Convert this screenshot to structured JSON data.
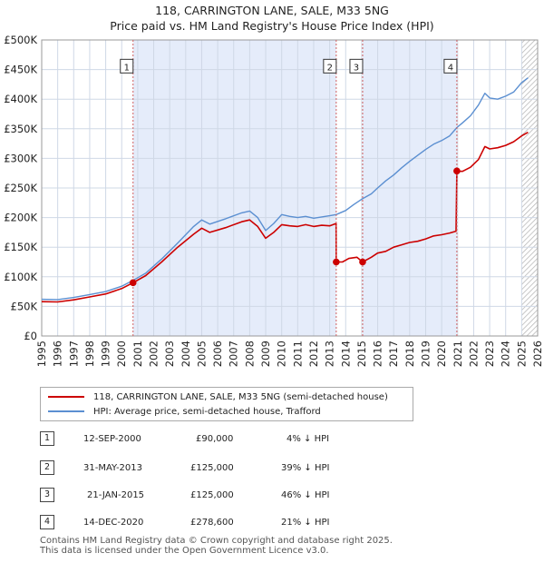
{
  "title_line1": "118, CARRINGTON LANE, SALE, M33 5NG",
  "title_line2": "Price paid vs. HM Land Registry's House Price Index (HPI)",
  "chart_data": {
    "type": "line",
    "xlim": [
      1995,
      2026
    ],
    "ylim": [
      0,
      500000
    ],
    "x_ticks": [
      1995,
      1996,
      1997,
      1998,
      1999,
      2000,
      2001,
      2002,
      2003,
      2004,
      2005,
      2006,
      2007,
      2008,
      2009,
      2010,
      2011,
      2012,
      2013,
      2014,
      2015,
      2016,
      2017,
      2018,
      2019,
      2020,
      2021,
      2022,
      2023,
      2024,
      2025,
      2026
    ],
    "y_ticks": [
      {
        "value": 0,
        "label": "£0"
      },
      {
        "value": 50000,
        "label": "£50K"
      },
      {
        "value": 100000,
        "label": "£100K"
      },
      {
        "value": 150000,
        "label": "£150K"
      },
      {
        "value": 200000,
        "label": "£200K"
      },
      {
        "value": 250000,
        "label": "£250K"
      },
      {
        "value": 300000,
        "label": "£300K"
      },
      {
        "value": 350000,
        "label": "£350K"
      },
      {
        "value": 400000,
        "label": "£400K"
      },
      {
        "value": 450000,
        "label": "£450K"
      },
      {
        "value": 500000,
        "label": "£500K"
      }
    ],
    "colors": {
      "price": "#cc0000",
      "hpi": "#5b8fd1",
      "shade": "#e5ecfa",
      "grid": "#cfd8e6",
      "marker": "#cc0000"
    },
    "series": [
      {
        "name": "118, CARRINGTON LANE, SALE, M33 5NG (semi-detached house)",
        "key": "price",
        "points": [
          [
            1995.0,
            58000
          ],
          [
            1996.0,
            57500
          ],
          [
            1997.0,
            61000
          ],
          [
            1998.0,
            66000
          ],
          [
            1999.0,
            71000
          ],
          [
            2000.0,
            80000
          ],
          [
            2000.71,
            90000
          ],
          [
            2001.5,
            102000
          ],
          [
            2002.5,
            125000
          ],
          [
            2003.5,
            150000
          ],
          [
            2004.5,
            172000
          ],
          [
            2005.0,
            182000
          ],
          [
            2005.5,
            175000
          ],
          [
            2006.5,
            183000
          ],
          [
            2007.5,
            193000
          ],
          [
            2008.0,
            196000
          ],
          [
            2008.5,
            185000
          ],
          [
            2009.0,
            165000
          ],
          [
            2009.5,
            175000
          ],
          [
            2010.0,
            188000
          ],
          [
            2010.5,
            186000
          ],
          [
            2011.0,
            185000
          ],
          [
            2011.5,
            188000
          ],
          [
            2012.0,
            185000
          ],
          [
            2012.5,
            187000
          ],
          [
            2013.0,
            186000
          ],
          [
            2013.4,
            190000
          ],
          [
            2013.41,
            125000
          ],
          [
            2013.8,
            125000
          ],
          [
            2014.2,
            131000
          ],
          [
            2014.7,
            133000
          ],
          [
            2015.06,
            125000
          ],
          [
            2015.6,
            133000
          ],
          [
            2016.0,
            140000
          ],
          [
            2016.5,
            143000
          ],
          [
            2017.0,
            150000
          ],
          [
            2017.5,
            154000
          ],
          [
            2018.0,
            158000
          ],
          [
            2018.5,
            160000
          ],
          [
            2019.0,
            164000
          ],
          [
            2019.5,
            169000
          ],
          [
            2020.0,
            171000
          ],
          [
            2020.5,
            174000
          ],
          [
            2020.9,
            177000
          ],
          [
            2020.95,
            278600
          ],
          [
            2021.3,
            278000
          ],
          [
            2021.8,
            285000
          ],
          [
            2022.3,
            298000
          ],
          [
            2022.7,
            320000
          ],
          [
            2023.0,
            316000
          ],
          [
            2023.5,
            318000
          ],
          [
            2024.0,
            322000
          ],
          [
            2024.5,
            328000
          ],
          [
            2025.0,
            338000
          ],
          [
            2025.4,
            344000
          ]
        ]
      },
      {
        "name": "HPI: Average price, semi-detached house, Trafford",
        "key": "hpi",
        "points": [
          [
            1995.0,
            62000
          ],
          [
            1996.0,
            61500
          ],
          [
            1997.0,
            65000
          ],
          [
            1998.0,
            70000
          ],
          [
            1999.0,
            75000
          ],
          [
            2000.0,
            84000
          ],
          [
            2000.71,
            94000
          ],
          [
            2001.5,
            106000
          ],
          [
            2002.5,
            130000
          ],
          [
            2003.5,
            157000
          ],
          [
            2004.5,
            185000
          ],
          [
            2005.0,
            196000
          ],
          [
            2005.5,
            189000
          ],
          [
            2006.5,
            198000
          ],
          [
            2007.5,
            208000
          ],
          [
            2008.0,
            211000
          ],
          [
            2008.5,
            200000
          ],
          [
            2009.0,
            178000
          ],
          [
            2009.5,
            190000
          ],
          [
            2010.0,
            205000
          ],
          [
            2010.5,
            202000
          ],
          [
            2011.0,
            200000
          ],
          [
            2011.5,
            202000
          ],
          [
            2012.0,
            199000
          ],
          [
            2012.5,
            201000
          ],
          [
            2013.0,
            203000
          ],
          [
            2013.41,
            205000
          ],
          [
            2014.0,
            212000
          ],
          [
            2014.5,
            222000
          ],
          [
            2015.06,
            232000
          ],
          [
            2015.6,
            240000
          ],
          [
            2016.0,
            250000
          ],
          [
            2016.5,
            262000
          ],
          [
            2017.0,
            272000
          ],
          [
            2017.5,
            284000
          ],
          [
            2018.0,
            295000
          ],
          [
            2018.5,
            305000
          ],
          [
            2019.0,
            315000
          ],
          [
            2019.5,
            324000
          ],
          [
            2020.0,
            330000
          ],
          [
            2020.5,
            338000
          ],
          [
            2020.95,
            352000
          ],
          [
            2021.3,
            360000
          ],
          [
            2021.8,
            372000
          ],
          [
            2022.3,
            390000
          ],
          [
            2022.7,
            410000
          ],
          [
            2023.0,
            402000
          ],
          [
            2023.5,
            400000
          ],
          [
            2024.0,
            405000
          ],
          [
            2024.5,
            412000
          ],
          [
            2025.0,
            428000
          ],
          [
            2025.4,
            436000
          ]
        ]
      }
    ],
    "sales": [
      {
        "num": "1",
        "x": 2000.71,
        "price": 90000
      },
      {
        "num": "2",
        "x": 2013.41,
        "price": 125000
      },
      {
        "num": "3",
        "x": 2015.06,
        "price": 125000
      },
      {
        "num": "4",
        "x": 2020.95,
        "price": 278600
      }
    ],
    "marker_label_value": 455000,
    "shade_ranges": [
      [
        2000.71,
        2013.41
      ],
      [
        2015.06,
        2020.95
      ]
    ],
    "hatch_from": 2025.0
  },
  "legend": {
    "price_label": "118, CARRINGTON LANE, SALE, M33 5NG (semi-detached house)",
    "hpi_label": "HPI: Average price, semi-detached house, Trafford"
  },
  "sales_table": [
    {
      "num": "1",
      "date": "12-SEP-2000",
      "price": "£90,000",
      "delta": "4% ↓ HPI"
    },
    {
      "num": "2",
      "date": "31-MAY-2013",
      "price": "£125,000",
      "delta": "39% ↓ HPI"
    },
    {
      "num": "3",
      "date": "21-JAN-2015",
      "price": "£125,000",
      "delta": "46% ↓ HPI"
    },
    {
      "num": "4",
      "date": "14-DEC-2020",
      "price": "£278,600",
      "delta": "21% ↓ HPI"
    }
  ],
  "footer_line1": "Contains HM Land Registry data © Crown copyright and database right 2025.",
  "footer_line2": "This data is licensed under the Open Government Licence v3.0."
}
